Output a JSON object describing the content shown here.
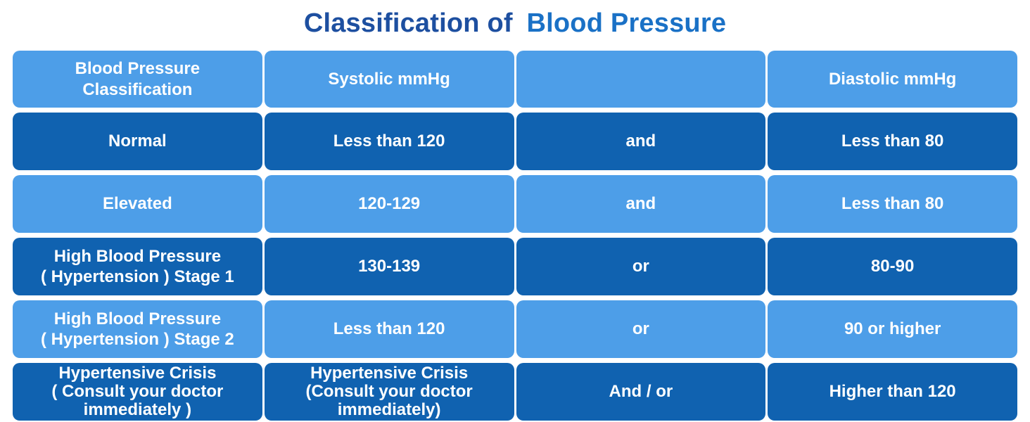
{
  "title": {
    "text_primary": "Classification of",
    "text_accent": "Blood Pressure"
  },
  "colors": {
    "title_primary": "#1D4FA0",
    "title_accent": "#1A71C6",
    "row_light": "#4D9EE8",
    "row_dark": "#1062B0",
    "cell_text": "#FFFFFF",
    "page_background": "#FFFFFF"
  },
  "table": {
    "header": {
      "shade": "light",
      "cells": [
        {
          "name": "header-classification",
          "lines": [
            "Blood Pressure",
            "Classification"
          ]
        },
        {
          "name": "header-systolic",
          "lines": [
            "Systolic mmHg"
          ]
        },
        {
          "name": "header-connector",
          "lines": []
        },
        {
          "name": "header-diastolic",
          "lines": [
            "Diastolic mmHg"
          ]
        }
      ]
    },
    "rows": [
      {
        "shade": "dark",
        "cells": [
          {
            "name": "cell-classification",
            "lines": [
              "Normal"
            ]
          },
          {
            "name": "cell-systolic",
            "lines": [
              "Less than 120"
            ]
          },
          {
            "name": "cell-connector",
            "lines": [
              "and"
            ]
          },
          {
            "name": "cell-diastolic",
            "lines": [
              "Less than 80"
            ]
          }
        ]
      },
      {
        "shade": "light",
        "cells": [
          {
            "name": "cell-classification",
            "lines": [
              "Elevated"
            ]
          },
          {
            "name": "cell-systolic",
            "lines": [
              "120-129"
            ]
          },
          {
            "name": "cell-connector",
            "lines": [
              "and"
            ]
          },
          {
            "name": "cell-diastolic",
            "lines": [
              "Less than 80"
            ]
          }
        ]
      },
      {
        "shade": "dark",
        "cells": [
          {
            "name": "cell-classification",
            "lines": [
              "High Blood Pressure",
              "( Hypertension ) Stage 1"
            ]
          },
          {
            "name": "cell-systolic",
            "lines": [
              "130-139"
            ]
          },
          {
            "name": "cell-connector",
            "lines": [
              "or"
            ]
          },
          {
            "name": "cell-diastolic",
            "lines": [
              "80-90"
            ]
          }
        ]
      },
      {
        "shade": "light",
        "cells": [
          {
            "name": "cell-classification",
            "lines": [
              "High Blood Pressure",
              "( Hypertension ) Stage 2"
            ]
          },
          {
            "name": "cell-systolic",
            "lines": [
              "Less than 120"
            ]
          },
          {
            "name": "cell-connector",
            "lines": [
              "or"
            ]
          },
          {
            "name": "cell-diastolic",
            "lines": [
              "90 or higher"
            ]
          }
        ]
      },
      {
        "shade": "dark",
        "cells": [
          {
            "name": "cell-classification",
            "lines": [
              "Hypertensive Crisis",
              "( Consult your doctor",
              "immediately )"
            ]
          },
          {
            "name": "cell-systolic",
            "lines": [
              "Hypertensive Crisis",
              "(Consult your doctor",
              "immediately)"
            ]
          },
          {
            "name": "cell-connector",
            "lines": [
              "And / or"
            ]
          },
          {
            "name": "cell-diastolic",
            "lines": [
              "Higher than 120"
            ]
          }
        ]
      }
    ]
  },
  "chart_data": {
    "type": "table",
    "title": "Classification of Blood Pressure",
    "columns": [
      "Blood Pressure Classification",
      "Systolic mmHg",
      "",
      "Diastolic mmHg"
    ],
    "rows": [
      [
        "Normal",
        "Less than 120",
        "and",
        "Less than 80"
      ],
      [
        "Elevated",
        "120-129",
        "and",
        "Less than 80"
      ],
      [
        "High Blood Pressure ( Hypertension ) Stage 1",
        "130-139",
        "or",
        "80-90"
      ],
      [
        "High Blood Pressure ( Hypertension ) Stage 2",
        "Less than 120",
        "or",
        "90 or higher"
      ],
      [
        "Hypertensive Crisis ( Consult your doctor immediately )",
        "Hypertensive Crisis (Consult your doctor immediately)",
        "And / or",
        "Higher than 120"
      ]
    ],
    "layout": {
      "row_shading": [
        "dark",
        "light",
        "dark",
        "light",
        "dark"
      ],
      "header_shading": "light"
    }
  }
}
